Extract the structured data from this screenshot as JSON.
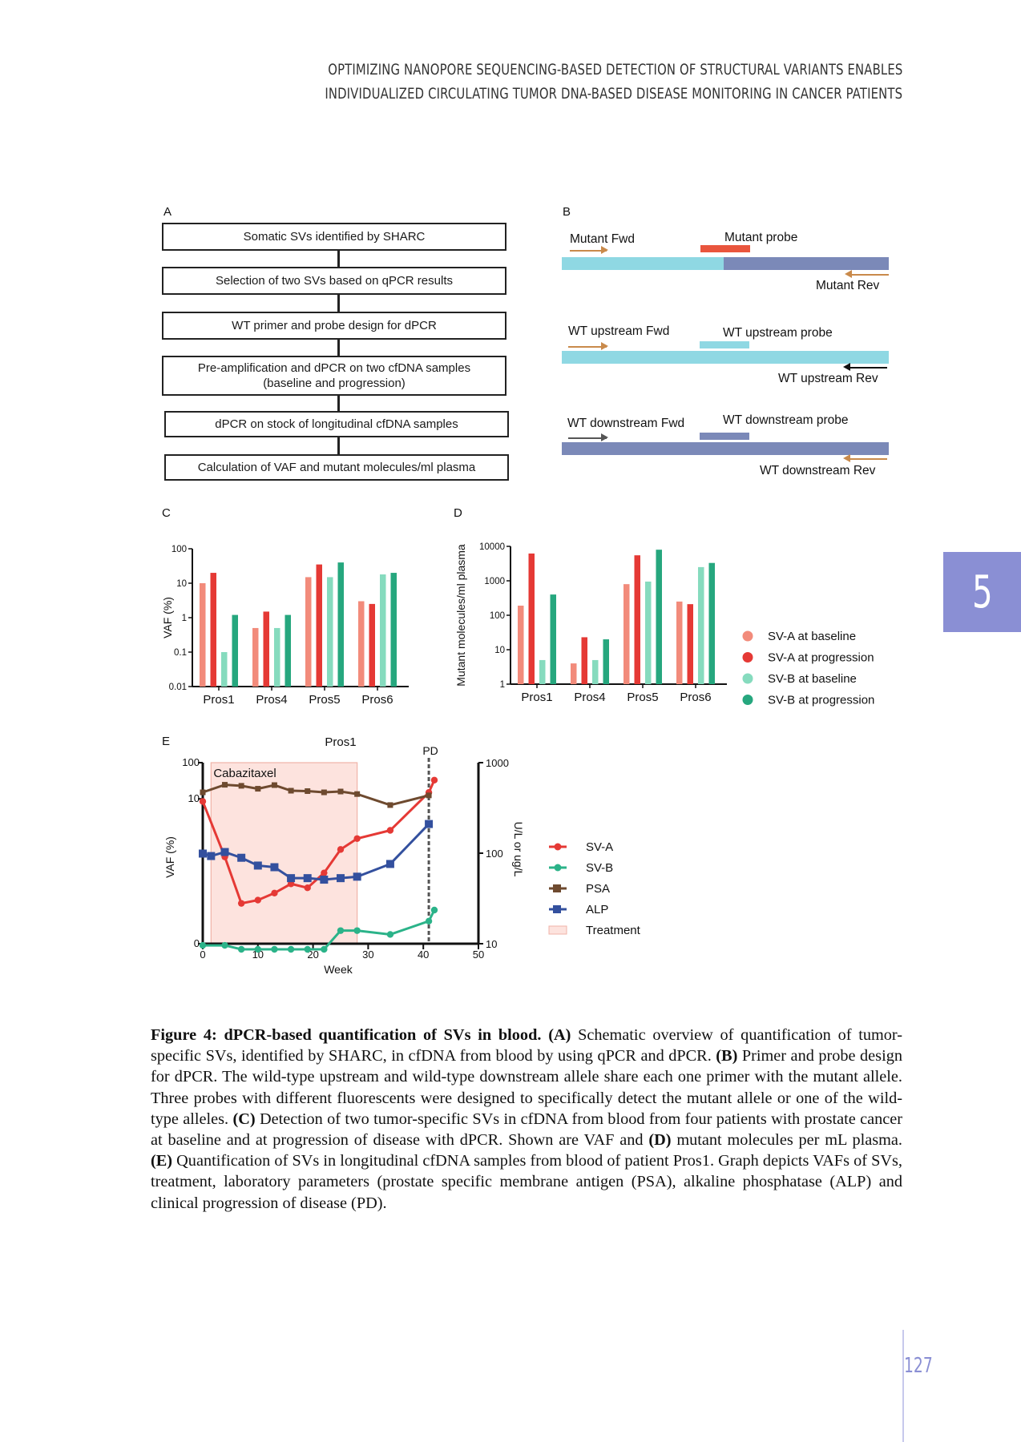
{
  "header": {
    "line1": "Optimizing nanopore sequencing-based detection of structural variants enables",
    "line2": "individualized circulating tumor DNA-based disease monitoring in cancer patients"
  },
  "chapter_tab": "5",
  "page_number": "127",
  "panels": {
    "a": "A",
    "b": "B",
    "c": "C",
    "d": "D",
    "e": "E"
  },
  "panel_a": {
    "steps": [
      "Somatic SVs identified by SHARC",
      "Selection of two SVs based on qPCR results",
      "WT primer and probe design for dPCR",
      "Pre-amplification and dPCR on  two cfDNA samples (baseline and progression)",
      "dPCR on stock of longitudinal cfDNA samples",
      "Calculation of VAF and mutant molecules/ml plasma"
    ]
  },
  "panel_b": {
    "mutant_fwd": "Mutant Fwd",
    "mutant_probe": "Mutant probe",
    "mutant_rev": "Mutant Rev",
    "wt_up_fwd": "WT upstream Fwd",
    "wt_up_probe": "WT upstream probe",
    "wt_up_rev": "WT upstream Rev",
    "wt_down_fwd": "WT downstream Fwd",
    "wt_down_probe": "WT downstream probe",
    "wt_down_rev": "WT downstream Rev",
    "colors": {
      "light_blue": "#8fd8e3",
      "dark_blue": "#7b89b8",
      "red": "#e9553d",
      "orange": "#c98a4b",
      "black": "#111111"
    }
  },
  "chart_data": [
    {
      "panel": "C",
      "type": "bar",
      "ylabel": "VAF (%)",
      "yscale": "log",
      "ylim": [
        0.01,
        100
      ],
      "yticks": [
        "0.01",
        "0.1",
        "1",
        "10",
        "100"
      ],
      "categories": [
        "Pros1",
        "Pros4",
        "Pros5",
        "Pros6"
      ],
      "series": [
        {
          "name": "SV-A at baseline",
          "color": "#f28b7b",
          "values": [
            10,
            0.5,
            15,
            3
          ]
        },
        {
          "name": "SV-A at progression",
          "color": "#e53935",
          "values": [
            20,
            1.5,
            35,
            2.5
          ]
        },
        {
          "name": "SV-B at baseline",
          "color": "#86dbbe",
          "values": [
            0.1,
            0.5,
            15,
            18
          ]
        },
        {
          "name": "SV-B at progression",
          "color": "#26a77e",
          "values": [
            1.2,
            1.2,
            40,
            20
          ]
        }
      ]
    },
    {
      "panel": "D",
      "type": "bar",
      "ylabel": "Mutant molecules/ml plasma",
      "yscale": "log",
      "ylim": [
        1,
        10000
      ],
      "yticks": [
        "1",
        "10",
        "100",
        "1000",
        "10000"
      ],
      "categories": [
        "Pros1",
        "Pros4",
        "Pros5",
        "Pros6"
      ],
      "series": [
        {
          "name": "SV-A at baseline",
          "color": "#f28b7b",
          "values": [
            190,
            4,
            800,
            250
          ]
        },
        {
          "name": "SV-A at progression",
          "color": "#e53935",
          "values": [
            6200,
            23,
            5500,
            210
          ]
        },
        {
          "name": "SV-B at baseline",
          "color": "#86dbbe",
          "values": [
            5,
            5,
            950,
            2500
          ]
        },
        {
          "name": "SV-B at progression",
          "color": "#26a77e",
          "values": [
            400,
            20,
            8000,
            3300
          ]
        }
      ],
      "legend": [
        "SV-A at baseline",
        "SV-A at progression",
        "SV-B at baseline",
        "SV-B at progression"
      ]
    },
    {
      "panel": "E",
      "type": "line",
      "title": "Pros1",
      "xlabel": "Week",
      "ylabel": "VAF (%)",
      "y2label": "U/L or ug/L",
      "xlim": [
        0,
        50
      ],
      "xticks": [
        "0",
        "10",
        "20",
        "30",
        "40",
        "50"
      ],
      "yticks": [
        "0",
        "10",
        "100"
      ],
      "y2ticks": [
        "10",
        "100",
        "1000"
      ],
      "treatment": {
        "label": "Cabazitaxel",
        "start": 1.5,
        "end": 28
      },
      "pd": {
        "label": "PD",
        "week": 41
      },
      "series": [
        {
          "name": "SV-A",
          "color": "#e53935",
          "marker": "circle",
          "axis": "left",
          "x": [
            0,
            4,
            7,
            10,
            13,
            16,
            19,
            22,
            25,
            28,
            34,
            41,
            42
          ],
          "y": [
            8.5,
            0.25,
            0.013,
            0.016,
            0.025,
            0.045,
            0.035,
            0.09,
            0.4,
            0.8,
            1.35,
            15,
            33
          ]
        },
        {
          "name": "SV-B",
          "color": "#2bb389",
          "marker": "circle",
          "axis": "left",
          "x": [
            0,
            4,
            7,
            10,
            13,
            16,
            19,
            22,
            25,
            28,
            34,
            41,
            42
          ],
          "y": [
            0.0009,
            0.0009,
            0.0007,
            0.0007,
            0.0007,
            0.0007,
            0.0007,
            0.0007,
            0.0023,
            0.0023,
            0.0018,
            0.0042,
            0.0085
          ]
        },
        {
          "name": "PSA",
          "color": "#6e4a2f",
          "marker": "square",
          "axis": "right",
          "x": [
            0,
            4,
            7,
            10,
            13,
            16,
            19,
            22,
            25,
            28,
            34,
            41
          ],
          "y": [
            470,
            570,
            555,
            515,
            565,
            490,
            485,
            470,
            480,
            450,
            340,
            435
          ]
        },
        {
          "name": "ALP",
          "color": "#33509e",
          "marker": "square",
          "axis": "right",
          "x": [
            0,
            1.5,
            4,
            7,
            10,
            13,
            16,
            19,
            22,
            25,
            28,
            34,
            41
          ],
          "y": [
            99,
            93,
            103,
            89,
            73,
            70,
            53,
            53,
            51,
            53,
            55,
            76,
            210
          ]
        }
      ],
      "legend": [
        "SV-A",
        "SV-B",
        "PSA",
        "ALP",
        "Treatment"
      ]
    }
  ],
  "caption": {
    "figure_label": "Figure 4: dPCR-based quantification of SVs in blood.",
    "parts": [
      {
        "bold": "(A)",
        "text": " Schematic overview of quantification of tumor-specific SVs, identified by SHARC, in cfDNA from blood by using qPCR and dPCR. "
      },
      {
        "bold": "(B)",
        "text": " Primer and probe design for dPCR. The wild-type upstream and wild-type downstream allele share each one primer with the mutant allele. Three probes with different fluorescents were designed to specifically detect the mutant allele or one of the wild-type alleles. "
      },
      {
        "bold": "(C)",
        "text": " Detection of two tumor-specific SVs in cfDNA from blood from four patients with prostate cancer at baseline and at progression of disease with dPCR. Shown are VAF and "
      },
      {
        "bold": "(D)",
        "text": " mutant molecules per mL plasma. "
      },
      {
        "bold": "(E)",
        "text": " Quantification of SVs in longitudinal cfDNA samples from blood of patient Pros1. Graph depicts VAFs of SVs, treatment, laboratory parameters (prostate specific membrane antigen (PSA), alkaline phosphatase (ALP) and clinical progression of disease (PD)."
      }
    ]
  }
}
